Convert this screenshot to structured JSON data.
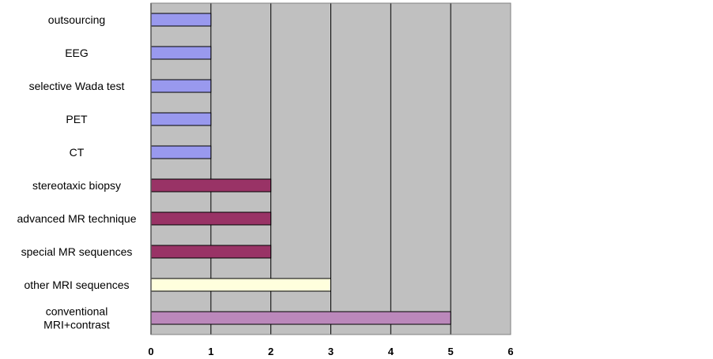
{
  "chart_data": {
    "type": "bar",
    "orientation": "horizontal",
    "categories": [
      "outsourcing",
      "EEG",
      "selective Wada test",
      "PET",
      "CT",
      "stereotaxic biopsy",
      "advanced MR technique",
      "special MR sequences",
      "other MRI sequences",
      [
        "conventional",
        "MRI+contrast"
      ]
    ],
    "values": [
      1,
      1,
      1,
      1,
      1,
      2,
      2,
      2,
      3,
      5
    ],
    "bar_colors": [
      "#9999ee",
      "#9999ee",
      "#9999ee",
      "#9999ee",
      "#9999ee",
      "#993366",
      "#993366",
      "#993366",
      "#ffffdd",
      "#bb88bb"
    ],
    "xlim": [
      0,
      6
    ],
    "xticks": [
      "0",
      "1",
      "2",
      "3",
      "4",
      "5",
      "6"
    ],
    "grid": true,
    "plot_background": "#c0c0c0",
    "title": "",
    "xlabel": "",
    "ylabel": ""
  }
}
